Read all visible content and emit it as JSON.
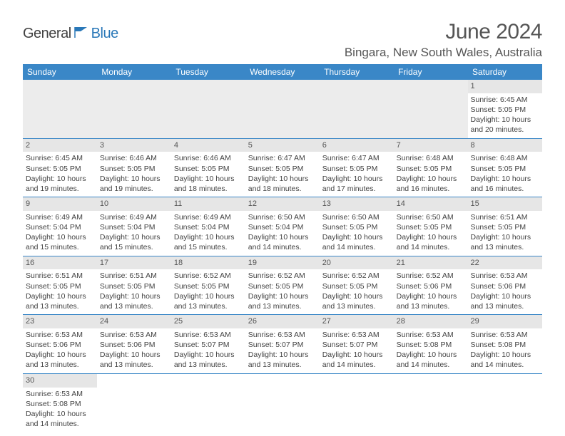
{
  "brand": {
    "name_main": "General",
    "name_accent": "Blue",
    "main_color": "#404040",
    "accent_color": "#2a78b8"
  },
  "title": "June 2024",
  "location": "Bingara, New South Wales, Australia",
  "colors": {
    "header_bg": "#3a87c7",
    "header_text": "#ffffff",
    "daynum_bg": "#e6e6e6",
    "cell_border": "#3a87c7",
    "text": "#424242",
    "title_text": "#555555"
  },
  "days_of_week": [
    "Sunday",
    "Monday",
    "Tuesday",
    "Wednesday",
    "Thursday",
    "Friday",
    "Saturday"
  ],
  "weeks": [
    [
      null,
      null,
      null,
      null,
      null,
      null,
      {
        "n": "1",
        "sr": "Sunrise: 6:45 AM",
        "ss": "Sunset: 5:05 PM",
        "d1": "Daylight: 10 hours",
        "d2": "and 20 minutes."
      }
    ],
    [
      {
        "n": "2",
        "sr": "Sunrise: 6:45 AM",
        "ss": "Sunset: 5:05 PM",
        "d1": "Daylight: 10 hours",
        "d2": "and 19 minutes."
      },
      {
        "n": "3",
        "sr": "Sunrise: 6:46 AM",
        "ss": "Sunset: 5:05 PM",
        "d1": "Daylight: 10 hours",
        "d2": "and 19 minutes."
      },
      {
        "n": "4",
        "sr": "Sunrise: 6:46 AM",
        "ss": "Sunset: 5:05 PM",
        "d1": "Daylight: 10 hours",
        "d2": "and 18 minutes."
      },
      {
        "n": "5",
        "sr": "Sunrise: 6:47 AM",
        "ss": "Sunset: 5:05 PM",
        "d1": "Daylight: 10 hours",
        "d2": "and 18 minutes."
      },
      {
        "n": "6",
        "sr": "Sunrise: 6:47 AM",
        "ss": "Sunset: 5:05 PM",
        "d1": "Daylight: 10 hours",
        "d2": "and 17 minutes."
      },
      {
        "n": "7",
        "sr": "Sunrise: 6:48 AM",
        "ss": "Sunset: 5:05 PM",
        "d1": "Daylight: 10 hours",
        "d2": "and 16 minutes."
      },
      {
        "n": "8",
        "sr": "Sunrise: 6:48 AM",
        "ss": "Sunset: 5:05 PM",
        "d1": "Daylight: 10 hours",
        "d2": "and 16 minutes."
      }
    ],
    [
      {
        "n": "9",
        "sr": "Sunrise: 6:49 AM",
        "ss": "Sunset: 5:04 PM",
        "d1": "Daylight: 10 hours",
        "d2": "and 15 minutes."
      },
      {
        "n": "10",
        "sr": "Sunrise: 6:49 AM",
        "ss": "Sunset: 5:04 PM",
        "d1": "Daylight: 10 hours",
        "d2": "and 15 minutes."
      },
      {
        "n": "11",
        "sr": "Sunrise: 6:49 AM",
        "ss": "Sunset: 5:04 PM",
        "d1": "Daylight: 10 hours",
        "d2": "and 15 minutes."
      },
      {
        "n": "12",
        "sr": "Sunrise: 6:50 AM",
        "ss": "Sunset: 5:04 PM",
        "d1": "Daylight: 10 hours",
        "d2": "and 14 minutes."
      },
      {
        "n": "13",
        "sr": "Sunrise: 6:50 AM",
        "ss": "Sunset: 5:05 PM",
        "d1": "Daylight: 10 hours",
        "d2": "and 14 minutes."
      },
      {
        "n": "14",
        "sr": "Sunrise: 6:50 AM",
        "ss": "Sunset: 5:05 PM",
        "d1": "Daylight: 10 hours",
        "d2": "and 14 minutes."
      },
      {
        "n": "15",
        "sr": "Sunrise: 6:51 AM",
        "ss": "Sunset: 5:05 PM",
        "d1": "Daylight: 10 hours",
        "d2": "and 13 minutes."
      }
    ],
    [
      {
        "n": "16",
        "sr": "Sunrise: 6:51 AM",
        "ss": "Sunset: 5:05 PM",
        "d1": "Daylight: 10 hours",
        "d2": "and 13 minutes."
      },
      {
        "n": "17",
        "sr": "Sunrise: 6:51 AM",
        "ss": "Sunset: 5:05 PM",
        "d1": "Daylight: 10 hours",
        "d2": "and 13 minutes."
      },
      {
        "n": "18",
        "sr": "Sunrise: 6:52 AM",
        "ss": "Sunset: 5:05 PM",
        "d1": "Daylight: 10 hours",
        "d2": "and 13 minutes."
      },
      {
        "n": "19",
        "sr": "Sunrise: 6:52 AM",
        "ss": "Sunset: 5:05 PM",
        "d1": "Daylight: 10 hours",
        "d2": "and 13 minutes."
      },
      {
        "n": "20",
        "sr": "Sunrise: 6:52 AM",
        "ss": "Sunset: 5:05 PM",
        "d1": "Daylight: 10 hours",
        "d2": "and 13 minutes."
      },
      {
        "n": "21",
        "sr": "Sunrise: 6:52 AM",
        "ss": "Sunset: 5:06 PM",
        "d1": "Daylight: 10 hours",
        "d2": "and 13 minutes."
      },
      {
        "n": "22",
        "sr": "Sunrise: 6:53 AM",
        "ss": "Sunset: 5:06 PM",
        "d1": "Daylight: 10 hours",
        "d2": "and 13 minutes."
      }
    ],
    [
      {
        "n": "23",
        "sr": "Sunrise: 6:53 AM",
        "ss": "Sunset: 5:06 PM",
        "d1": "Daylight: 10 hours",
        "d2": "and 13 minutes."
      },
      {
        "n": "24",
        "sr": "Sunrise: 6:53 AM",
        "ss": "Sunset: 5:06 PM",
        "d1": "Daylight: 10 hours",
        "d2": "and 13 minutes."
      },
      {
        "n": "25",
        "sr": "Sunrise: 6:53 AM",
        "ss": "Sunset: 5:07 PM",
        "d1": "Daylight: 10 hours",
        "d2": "and 13 minutes."
      },
      {
        "n": "26",
        "sr": "Sunrise: 6:53 AM",
        "ss": "Sunset: 5:07 PM",
        "d1": "Daylight: 10 hours",
        "d2": "and 13 minutes."
      },
      {
        "n": "27",
        "sr": "Sunrise: 6:53 AM",
        "ss": "Sunset: 5:07 PM",
        "d1": "Daylight: 10 hours",
        "d2": "and 14 minutes."
      },
      {
        "n": "28",
        "sr": "Sunrise: 6:53 AM",
        "ss": "Sunset: 5:08 PM",
        "d1": "Daylight: 10 hours",
        "d2": "and 14 minutes."
      },
      {
        "n": "29",
        "sr": "Sunrise: 6:53 AM",
        "ss": "Sunset: 5:08 PM",
        "d1": "Daylight: 10 hours",
        "d2": "and 14 minutes."
      }
    ],
    [
      {
        "n": "30",
        "sr": "Sunrise: 6:53 AM",
        "ss": "Sunset: 5:08 PM",
        "d1": "Daylight: 10 hours",
        "d2": "and 14 minutes."
      },
      null,
      null,
      null,
      null,
      null,
      null
    ]
  ]
}
